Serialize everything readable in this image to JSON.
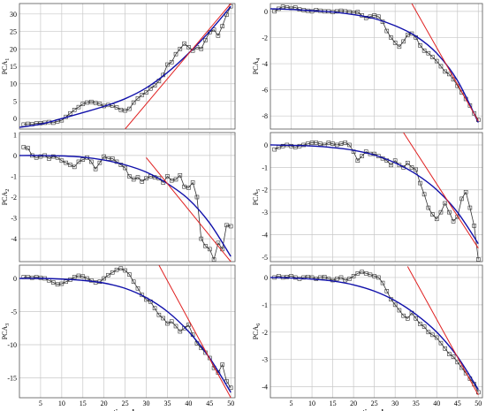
{
  "colors": {
    "observed": "#333333",
    "poly_fit": "#1010aa",
    "linear_fit": "#e02020",
    "grid": "#c8c8c8",
    "frame": "#555555"
  },
  "chart_data": [
    {
      "type": "line",
      "ylabel": "PCA",
      "ylabel_sub": "1",
      "xlabel": "",
      "xlim": [
        0,
        51
      ],
      "ylim": [
        -3,
        33
      ],
      "xticks": [
        5,
        10,
        15,
        20,
        25,
        30,
        35,
        40,
        45,
        50
      ],
      "yticks": [
        0,
        5,
        10,
        15,
        20,
        25,
        30
      ],
      "show_xticklabels": false,
      "series": [
        {
          "role": "observed",
          "x": [
            1,
            2,
            3,
            4,
            5,
            6,
            7,
            8,
            9,
            10,
            11,
            12,
            13,
            14,
            15,
            16,
            17,
            18,
            19,
            20,
            21,
            22,
            23,
            24,
            25,
            26,
            27,
            28,
            29,
            30,
            31,
            32,
            33,
            34,
            35,
            36,
            37,
            38,
            39,
            40,
            41,
            42,
            43,
            44,
            45,
            46,
            47,
            48,
            49,
            50
          ],
          "y": [
            -1.7,
            -1.5,
            -1.6,
            -1.4,
            -1.3,
            -1.2,
            -1.0,
            -1.2,
            -0.8,
            -0.5,
            0.5,
            1.5,
            2.5,
            3.3,
            4.2,
            4.6,
            4.8,
            4.5,
            4.2,
            3.6,
            3.9,
            3.7,
            3.2,
            2.5,
            2.3,
            2.8,
            4.6,
            5.8,
            6.8,
            7.5,
            8.6,
            9.5,
            10.8,
            12.5,
            15.5,
            16.2,
            18.5,
            20.0,
            21.5,
            20.5,
            19.5,
            20.5,
            20.0,
            22.5,
            24.8,
            25.5,
            23.8,
            26.5,
            29.8,
            32.2
          ]
        },
        {
          "role": "poly_fit",
          "x": [
            0,
            5,
            10,
            15,
            20,
            25,
            30,
            35,
            40,
            45,
            50
          ],
          "y": [
            -2.5,
            -1.6,
            0.0,
            1.7,
            3.5,
            5.7,
            8.8,
            13.2,
            18.7,
            25.0,
            32.2
          ]
        },
        {
          "role": "linear_fit",
          "x": [
            25,
            50
          ],
          "y": [
            -3.0,
            33.0
          ]
        }
      ]
    },
    {
      "type": "line",
      "ylabel": "PCA",
      "ylabel_sub": "2",
      "xlabel": "",
      "xlim": [
        0,
        51
      ],
      "ylim": [
        -5.1,
        1.1
      ],
      "xticks": [
        5,
        10,
        15,
        20,
        25,
        30,
        35,
        40,
        45,
        50
      ],
      "yticks": [
        -4,
        -3,
        -2,
        -1,
        0,
        1
      ],
      "show_xticklabels": false,
      "series": [
        {
          "role": "observed",
          "x": [
            1,
            2,
            3,
            4,
            5,
            6,
            7,
            8,
            9,
            10,
            11,
            12,
            13,
            14,
            15,
            16,
            17,
            18,
            19,
            20,
            21,
            22,
            23,
            24,
            25,
            26,
            27,
            28,
            29,
            30,
            31,
            32,
            33,
            34,
            35,
            36,
            37,
            38,
            39,
            40,
            41,
            42,
            43,
            44,
            45,
            46,
            47,
            48,
            49,
            50
          ],
          "y": [
            0.4,
            0.35,
            0.0,
            -0.1,
            -0.05,
            0.0,
            -0.15,
            -0.05,
            -0.1,
            -0.25,
            -0.35,
            -0.45,
            -0.55,
            -0.3,
            -0.2,
            -0.1,
            -0.3,
            -0.65,
            -0.35,
            -0.05,
            -0.15,
            -0.15,
            -0.3,
            -0.45,
            -0.6,
            -1.0,
            -1.15,
            -1.05,
            -1.25,
            -1.1,
            -1.0,
            -1.05,
            -1.1,
            -1.3,
            -1.0,
            -1.2,
            -1.15,
            -0.95,
            -1.5,
            -1.55,
            -1.3,
            -2.0,
            -4.0,
            -4.35,
            -4.5,
            -5.0,
            -4.2,
            -4.5,
            -3.35,
            -3.4
          ]
        },
        {
          "role": "poly_fit",
          "x": [
            0,
            5,
            10,
            15,
            20,
            25,
            30,
            35,
            40,
            45,
            50
          ],
          "y": [
            0.0,
            0.0,
            -0.02,
            -0.08,
            -0.22,
            -0.45,
            -0.8,
            -1.35,
            -2.1,
            -3.25,
            -4.85
          ]
        },
        {
          "role": "linear_fit",
          "x": [
            30,
            50
          ],
          "y": [
            -0.1,
            -5.1
          ]
        }
      ]
    },
    {
      "type": "line",
      "ylabel": "PCA",
      "ylabel_sub": "3",
      "xlabel": "time, day",
      "xlim": [
        0,
        51
      ],
      "ylim": [
        -18,
        2
      ],
      "xticks": [
        5,
        10,
        15,
        20,
        25,
        30,
        35,
        40,
        45,
        50
      ],
      "yticks": [
        -15,
        -10,
        -5,
        0
      ],
      "show_xticklabels": true,
      "series": [
        {
          "role": "observed",
          "x": [
            1,
            2,
            3,
            4,
            5,
            6,
            7,
            8,
            9,
            10,
            11,
            12,
            13,
            14,
            15,
            16,
            17,
            18,
            19,
            20,
            21,
            22,
            23,
            24,
            25,
            26,
            27,
            28,
            29,
            30,
            31,
            32,
            33,
            34,
            35,
            36,
            37,
            38,
            39,
            40,
            41,
            42,
            43,
            44,
            45,
            46,
            47,
            48,
            49,
            50
          ],
          "y": [
            0.2,
            0.2,
            0.1,
            0.2,
            0.1,
            0.0,
            -0.3,
            -0.6,
            -0.9,
            -0.8,
            -0.5,
            -0.2,
            0.2,
            0.4,
            0.3,
            0.0,
            -0.3,
            -0.6,
            -0.5,
            0.0,
            0.5,
            0.9,
            1.3,
            1.5,
            1.2,
            0.6,
            -0.5,
            -1.5,
            -2.5,
            -3.2,
            -3.5,
            -4.5,
            -5.5,
            -6.0,
            -6.8,
            -6.5,
            -7.2,
            -8.0,
            -7.5,
            -7.0,
            -8.5,
            -9.8,
            -10.5,
            -11.2,
            -12.0,
            -13.5,
            -14.2,
            -13.0,
            -15.5,
            -16.5
          ]
        },
        {
          "role": "poly_fit",
          "x": [
            0,
            5,
            10,
            15,
            20,
            25,
            30,
            35,
            40,
            45,
            50
          ],
          "y": [
            0.0,
            0.0,
            -0.1,
            -0.3,
            -0.7,
            -1.5,
            -2.9,
            -5.0,
            -8.0,
            -12.0,
            -17.2
          ]
        },
        {
          "role": "linear_fit",
          "x": [
            33,
            50
          ],
          "y": [
            2.0,
            -18.0
          ]
        }
      ]
    },
    {
      "type": "line",
      "ylabel": "PCA",
      "ylabel_sub": "4",
      "xlabel": "",
      "xlim": [
        0,
        51
      ],
      "ylim": [
        -9,
        0.6
      ],
      "xticks": [
        5,
        10,
        15,
        20,
        25,
        30,
        35,
        40,
        45,
        50
      ],
      "yticks": [
        -8,
        -6,
        -4,
        -2,
        0
      ],
      "show_xticklabels": false,
      "series": [
        {
          "role": "observed",
          "x": [
            1,
            2,
            3,
            4,
            5,
            6,
            7,
            8,
            9,
            10,
            11,
            12,
            13,
            14,
            15,
            16,
            17,
            18,
            19,
            20,
            21,
            22,
            23,
            24,
            25,
            26,
            27,
            28,
            29,
            30,
            31,
            32,
            33,
            34,
            35,
            36,
            37,
            38,
            39,
            40,
            41,
            42,
            43,
            44,
            45,
            46,
            47,
            48,
            49,
            50
          ],
          "y": [
            0.0,
            0.2,
            0.35,
            0.3,
            0.25,
            0.3,
            0.15,
            0.1,
            0.05,
            0.0,
            0.1,
            0.05,
            0.0,
            0.0,
            -0.05,
            0.0,
            0.05,
            0.0,
            -0.05,
            -0.1,
            -0.05,
            -0.3,
            -0.5,
            -0.4,
            -0.3,
            -0.4,
            -0.8,
            -1.5,
            -2.0,
            -2.4,
            -2.7,
            -2.3,
            -1.8,
            -1.7,
            -2.0,
            -2.6,
            -3.0,
            -3.2,
            -3.5,
            -3.8,
            -4.2,
            -4.6,
            -4.8,
            -5.2,
            -5.7,
            -6.2,
            -6.7,
            -7.2,
            -7.8,
            -8.3
          ]
        },
        {
          "role": "poly_fit",
          "x": [
            0,
            5,
            10,
            15,
            20,
            25,
            30,
            35,
            40,
            45,
            50
          ],
          "y": [
            0.2,
            0.15,
            0.05,
            -0.05,
            -0.25,
            -0.55,
            -1.1,
            -1.9,
            -3.2,
            -5.3,
            -8.5
          ]
        },
        {
          "role": "linear_fit",
          "x": [
            34,
            50
          ],
          "y": [
            0.6,
            -8.4
          ]
        }
      ]
    },
    {
      "type": "line",
      "ylabel": "PCA",
      "ylabel_sub": "5",
      "xlabel": "",
      "xlim": [
        0,
        51
      ],
      "ylim": [
        -5.2,
        0.55
      ],
      "xticks": [
        5,
        10,
        15,
        20,
        25,
        30,
        35,
        40,
        45,
        50
      ],
      "yticks": [
        -5,
        -4,
        -3,
        -2,
        -1,
        0
      ],
      "show_xticklabels": false,
      "series": [
        {
          "role": "observed",
          "x": [
            1,
            2,
            3,
            4,
            5,
            6,
            7,
            8,
            9,
            10,
            11,
            12,
            13,
            14,
            15,
            16,
            17,
            18,
            19,
            20,
            21,
            22,
            23,
            24,
            25,
            26,
            27,
            28,
            29,
            30,
            31,
            32,
            33,
            34,
            35,
            36,
            37,
            38,
            39,
            40,
            41,
            42,
            43,
            44,
            45,
            46,
            47,
            48,
            49,
            50
          ],
          "y": [
            -0.2,
            -0.1,
            -0.05,
            0.0,
            -0.05,
            -0.1,
            -0.05,
            0.0,
            0.05,
            0.1,
            0.1,
            0.05,
            0.0,
            0.1,
            0.05,
            0.0,
            0.05,
            0.1,
            0.0,
            -0.3,
            -0.7,
            -0.5,
            -0.3,
            -0.4,
            -0.4,
            -0.5,
            -0.6,
            -0.7,
            -0.9,
            -0.7,
            -0.9,
            -1.0,
            -0.8,
            -1.0,
            -1.1,
            -1.7,
            -2.2,
            -2.8,
            -3.1,
            -3.3,
            -3.0,
            -2.6,
            -3.0,
            -3.4,
            -3.2,
            -2.4,
            -2.1,
            -2.8,
            -3.6,
            -5.1
          ]
        },
        {
          "role": "poly_fit",
          "x": [
            0,
            5,
            10,
            15,
            20,
            25,
            30,
            35,
            40,
            45,
            50
          ],
          "y": [
            0.0,
            -0.02,
            -0.05,
            -0.12,
            -0.24,
            -0.45,
            -0.8,
            -1.3,
            -2.0,
            -3.0,
            -4.4
          ]
        },
        {
          "role": "linear_fit",
          "x": [
            32,
            50
          ],
          "y": [
            0.55,
            -4.6
          ]
        }
      ]
    },
    {
      "type": "line",
      "ylabel": "PCA",
      "ylabel_sub": "6",
      "xlabel": "time, day",
      "xlim": [
        0,
        51
      ],
      "ylim": [
        -4.4,
        0.45
      ],
      "xticks": [
        5,
        10,
        15,
        20,
        25,
        30,
        35,
        40,
        45,
        50
      ],
      "yticks": [
        -4,
        -3,
        -2,
        -1,
        0
      ],
      "show_xticklabels": true,
      "series": [
        {
          "role": "observed",
          "x": [
            1,
            2,
            3,
            4,
            5,
            6,
            7,
            8,
            9,
            10,
            11,
            12,
            13,
            14,
            15,
            16,
            17,
            18,
            19,
            20,
            21,
            22,
            23,
            24,
            25,
            26,
            27,
            28,
            29,
            30,
            31,
            32,
            33,
            34,
            35,
            36,
            37,
            38,
            39,
            40,
            41,
            42,
            43,
            44,
            45,
            46,
            47,
            48,
            49,
            50
          ],
          "y": [
            0.0,
            0.05,
            0.0,
            0.02,
            0.05,
            0.0,
            -0.05,
            0.0,
            0.02,
            0.0,
            -0.05,
            0.0,
            0.02,
            -0.05,
            -0.1,
            -0.05,
            0.0,
            -0.1,
            -0.05,
            0.05,
            0.15,
            0.2,
            0.15,
            0.1,
            0.05,
            0.0,
            -0.2,
            -0.5,
            -0.8,
            -1.0,
            -1.2,
            -1.4,
            -1.5,
            -1.3,
            -1.5,
            -1.7,
            -1.8,
            -2.0,
            -2.1,
            -2.2,
            -2.4,
            -2.6,
            -2.8,
            -2.9,
            -3.1,
            -3.3,
            -3.5,
            -3.7,
            -3.9,
            -4.2
          ]
        },
        {
          "role": "poly_fit",
          "x": [
            0,
            5,
            10,
            15,
            20,
            25,
            30,
            35,
            40,
            45,
            50
          ],
          "y": [
            0.0,
            -0.02,
            -0.06,
            -0.13,
            -0.27,
            -0.5,
            -0.85,
            -1.35,
            -2.0,
            -2.9,
            -4.1
          ]
        },
        {
          "role": "linear_fit",
          "x": [
            33,
            50
          ],
          "y": [
            0.4,
            -4.3
          ]
        }
      ]
    }
  ]
}
